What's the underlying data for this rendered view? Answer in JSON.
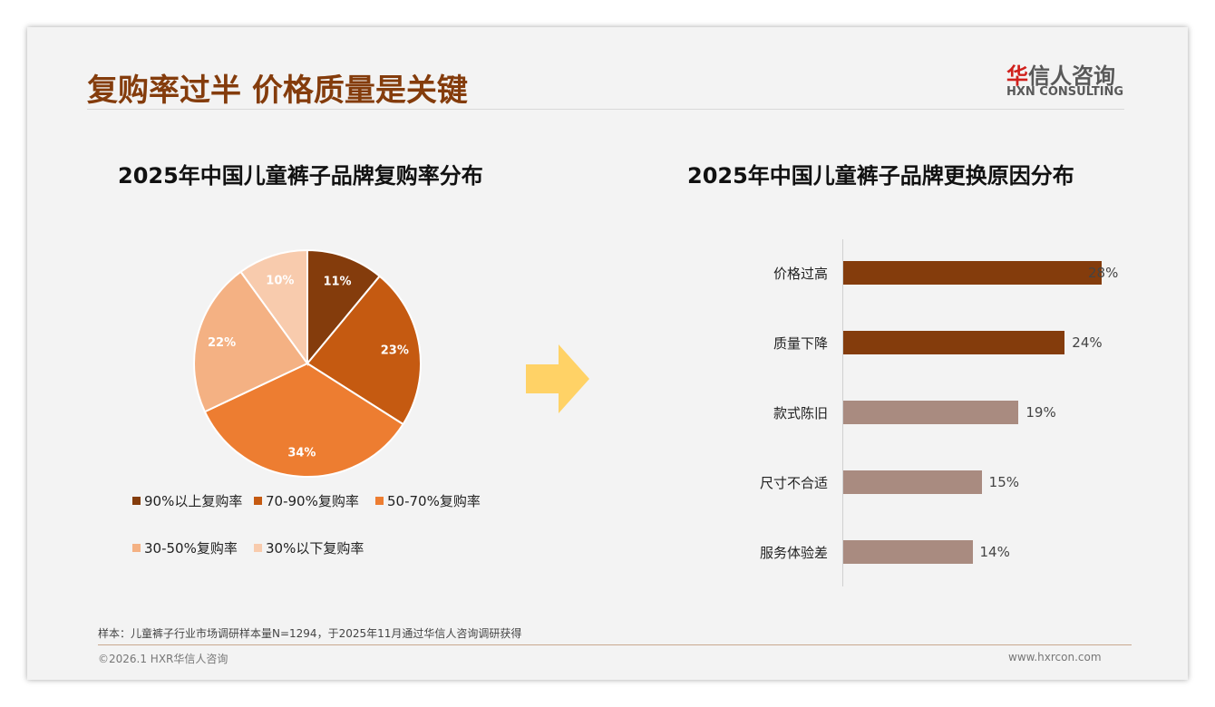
{
  "header": {
    "title": "复购率过半 价格质量是关键",
    "logo_cn_red": "华",
    "logo_cn": "信人咨询",
    "logo_en": "HXN CONSULTING"
  },
  "chart_data": [
    {
      "type": "pie",
      "title": "2025年中国儿童裤子品牌复购率分布",
      "legend_position": "bottom",
      "slices": [
        {
          "label": "90%以上复购率",
          "value": 11,
          "text": "11%",
          "color": "#843C0C"
        },
        {
          "label": "70-90%复购率",
          "value": 23,
          "text": "23%",
          "color": "#C55A11"
        },
        {
          "label": "50-70%复购率",
          "value": 34,
          "text": "34%",
          "color": "#ED7D31"
        },
        {
          "label": "30-50%复购率",
          "value": 22,
          "text": "22%",
          "color": "#F4B183"
        },
        {
          "label": "30%以下复购率",
          "value": 10,
          "text": "10%",
          "color": "#F8CBAD"
        }
      ]
    },
    {
      "type": "bar",
      "orientation": "horizontal",
      "title": "2025年中国儿童裤子品牌更换原因分布",
      "xlim": [
        0,
        28
      ],
      "categories": [
        "价格过高",
        "质量下降",
        "款式陈旧",
        "尺寸不合适",
        "服务体验差"
      ],
      "values": [
        28,
        24,
        19,
        15,
        14
      ],
      "labels": [
        "28%",
        "24%",
        "19%",
        "15%",
        "14%"
      ],
      "colors": [
        "#843C0C",
        "#843C0C",
        "#A98B80",
        "#A98B80",
        "#A98B80"
      ]
    }
  ],
  "footer": {
    "note": "样本：儿童裤子行业市场调研样本量N=1294，于2025年11月通过华信人咨询调研获得",
    "copyright": "©2026.1 HXR华信人咨询",
    "website": "www.hxrcon.com"
  }
}
